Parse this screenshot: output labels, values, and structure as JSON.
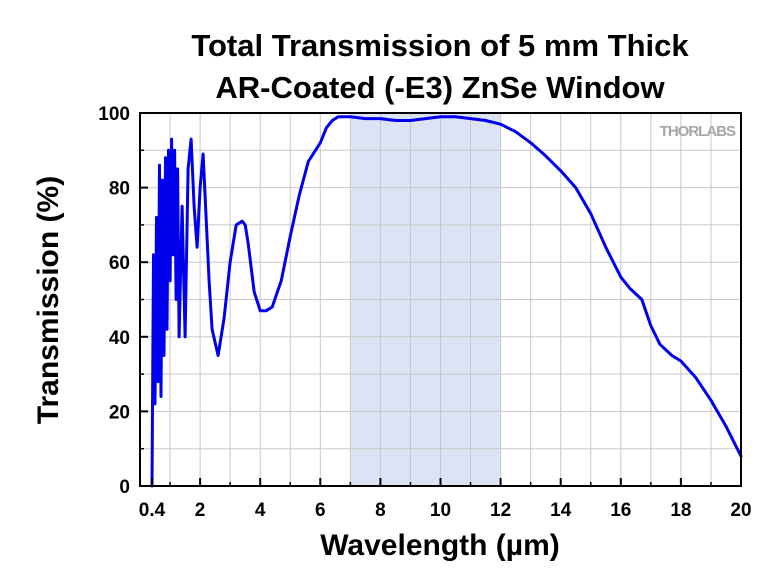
{
  "chart_data": {
    "type": "line",
    "title": [
      "Total Transmission of 5 mm Thick",
      "AR-Coated (-E3) ZnSe Window"
    ],
    "xlabel": "Wavelength (µm)",
    "ylabel": "Transmission (%)",
    "xlim": [
      0,
      20
    ],
    "ylim": [
      0,
      100
    ],
    "grid": true,
    "watermark": "THORLABS",
    "x_ticks": [
      {
        "value": 0.4,
        "label": "0.4"
      },
      {
        "value": 2,
        "label": "2"
      },
      {
        "value": 4,
        "label": "4"
      },
      {
        "value": 6,
        "label": "6"
      },
      {
        "value": 8,
        "label": "8"
      },
      {
        "value": 10,
        "label": "10"
      },
      {
        "value": 12,
        "label": "12"
      },
      {
        "value": 14,
        "label": "14"
      },
      {
        "value": 16,
        "label": "16"
      },
      {
        "value": 18,
        "label": "18"
      },
      {
        "value": 20,
        "label": "20"
      }
    ],
    "y_ticks": [
      {
        "value": 0,
        "label": "0"
      },
      {
        "value": 20,
        "label": "20"
      },
      {
        "value": 40,
        "label": "40"
      },
      {
        "value": 60,
        "label": "60"
      },
      {
        "value": 80,
        "label": "80"
      },
      {
        "value": 100,
        "label": "100"
      }
    ],
    "highlight_band": {
      "x_start": 7,
      "x_end": 12,
      "color": "#dbe3f5"
    },
    "series": [
      {
        "color": "#0000ee",
        "x": [
          0.4,
          0.45,
          0.5,
          0.55,
          0.6,
          0.65,
          0.7,
          0.75,
          0.8,
          0.85,
          0.9,
          0.95,
          1.0,
          1.05,
          1.1,
          1.15,
          1.2,
          1.25,
          1.3,
          1.4,
          1.5,
          1.6,
          1.7,
          1.8,
          1.9,
          2.0,
          2.1,
          2.2,
          2.3,
          2.4,
          2.6,
          2.8,
          3.0,
          3.2,
          3.4,
          3.5,
          3.6,
          3.8,
          4.0,
          4.2,
          4.4,
          4.7,
          5.0,
          5.3,
          5.6,
          6.0,
          6.2,
          6.4,
          6.6,
          7.0,
          7.5,
          8.0,
          8.5,
          9.0,
          9.5,
          10.0,
          10.5,
          11.0,
          11.5,
          12.0,
          12.5,
          13.0,
          13.5,
          14.0,
          14.5,
          15.0,
          15.5,
          16.0,
          16.3,
          16.7,
          17.0,
          17.3,
          17.7,
          18.0,
          18.5,
          19.0,
          19.5,
          20.0
        ],
        "y": [
          0,
          62,
          22,
          72,
          28,
          86,
          24,
          82,
          35,
          88,
          42,
          90,
          55,
          93,
          62,
          90,
          50,
          85,
          40,
          75,
          40,
          85,
          93,
          75,
          64,
          80,
          89,
          72,
          55,
          42,
          35,
          45,
          60,
          70,
          71,
          70,
          65,
          52,
          47,
          47,
          48,
          55,
          67,
          78,
          87,
          92,
          96,
          98,
          99,
          99,
          98.5,
          98.5,
          98,
          98,
          98.5,
          99,
          99,
          98.5,
          98,
          97,
          95,
          92,
          88.5,
          84.5,
          80,
          73,
          64,
          56,
          53,
          50,
          43,
          38,
          35,
          33.5,
          29,
          23,
          16,
          8
        ]
      }
    ]
  }
}
